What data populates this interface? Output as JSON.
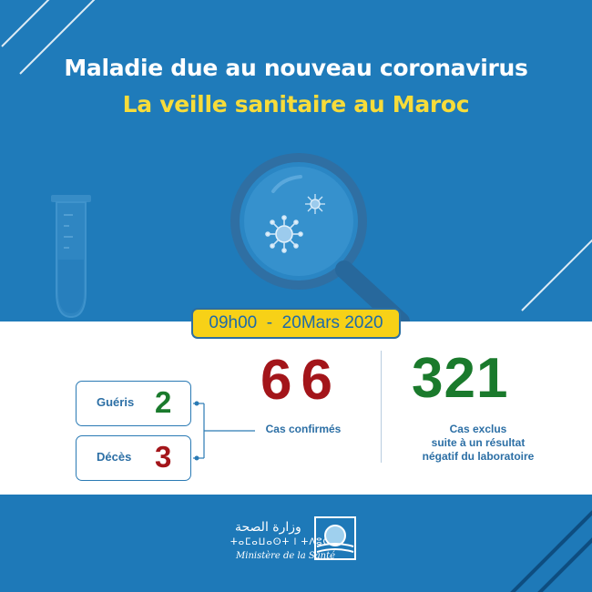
{
  "header": {
    "title_line1": "Maladie due au nouveau coronavirus",
    "title_line2": "La veille sanitaire au Maroc"
  },
  "date_badge": "09h00  -  20Mars 2020",
  "stats": {
    "recovered": {
      "label": "Guéris",
      "value": "2"
    },
    "deaths": {
      "label": "Décès",
      "value": "3"
    },
    "confirmed": {
      "label": "Cas confirmés",
      "value": "66"
    },
    "excluded": {
      "value": "321",
      "label_line1": "Cas exclus",
      "label_line2": "suite à un résultat",
      "label_line3": "négatif du laboratoire"
    }
  },
  "footer": {
    "ministry_arabic": "وزارة الصحة",
    "ministry_tifinagh": "ⵜⴰⵎⴰⵡⴰⵙⵜ ⵏ ⵜⴷⵓⵙⵉ",
    "ministry_french": "Ministère de la Santé"
  },
  "colors": {
    "blue_bg": "#1f7bba",
    "yellow": "#f7d117",
    "green": "#1a7a2c",
    "red": "#a3151a",
    "label_blue": "#2c6fa5"
  },
  "icons": [
    "test-tube-icon",
    "magnifier-icon",
    "virus-icon",
    "ministry-emblem-icon"
  ]
}
